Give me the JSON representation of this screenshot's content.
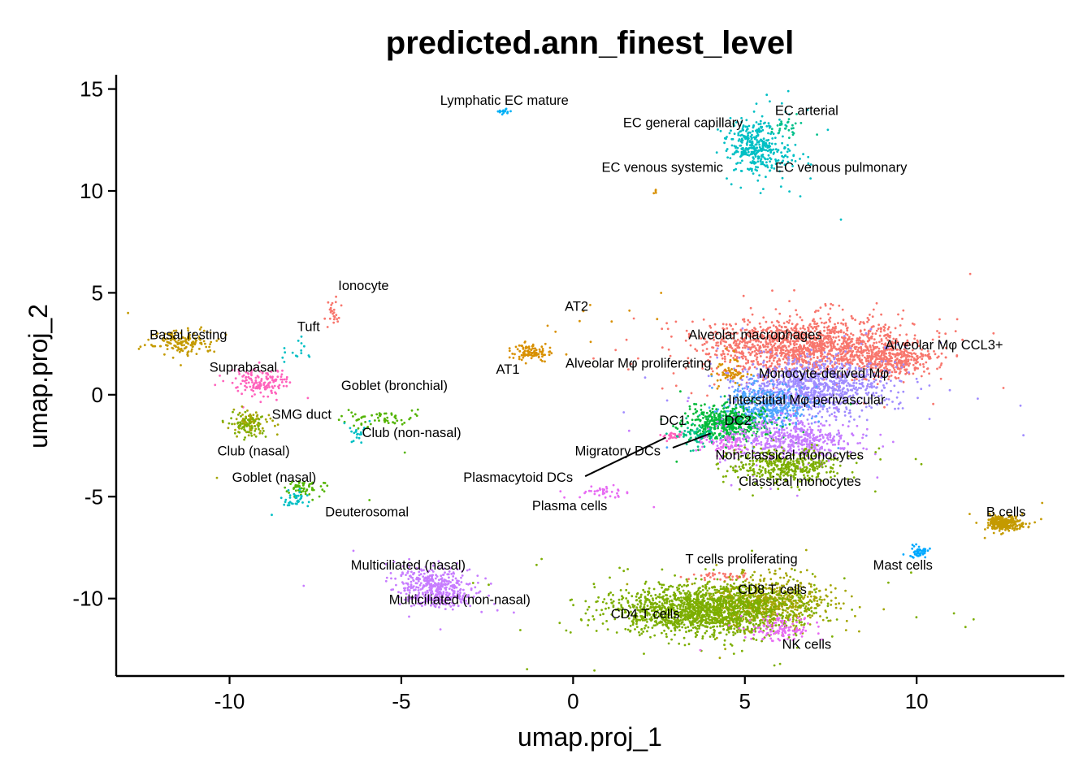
{
  "chart_data": {
    "type": "scatter",
    "title": "predicted.ann_finest_level",
    "xlabel": "umap.proj_1",
    "ylabel": "umap.proj_2",
    "xlim": [
      -13.3,
      14.3
    ],
    "ylim": [
      -13.8,
      15.7
    ],
    "xticks": [
      -10,
      -5,
      0,
      5,
      10
    ],
    "yticks": [
      15,
      10,
      5,
      0,
      -5,
      -10
    ],
    "xtick_labels": [
      "-10",
      "-5",
      "0",
      "5",
      "10"
    ],
    "ytick_labels": [
      "15",
      "10",
      "5",
      "0",
      "-5",
      "-10"
    ],
    "grid": false,
    "legend": "none",
    "clusters": [
      {
        "name": "Alveolar macrophages",
        "color": "#F8766D",
        "cx": 6.8,
        "cy": 2.4,
        "sx": 1.5,
        "sy": 0.7,
        "n": 1400,
        "label_x": 5.3,
        "label_y": 2.9
      },
      {
        "name": "Alveolar Mφ CCL3+",
        "color": "#F8766D",
        "cx": 9.3,
        "cy": 1.7,
        "sx": 0.6,
        "sy": 0.4,
        "n": 350,
        "label_x": 10.8,
        "label_y": 2.4
      },
      {
        "name": "Monocyte-derived Mφ",
        "color": "#A08CFF",
        "cx": 7.0,
        "cy": 0.4,
        "sx": 1.1,
        "sy": 0.7,
        "n": 1000,
        "label_x": 7.3,
        "label_y": 1.0
      },
      {
        "name": "Interstitial Mφ perivascular",
        "color": "#4DA5FF",
        "cx": 5.6,
        "cy": -0.6,
        "sx": 0.6,
        "sy": 0.5,
        "n": 400,
        "label_x": 6.8,
        "label_y": -0.3
      },
      {
        "name": "DC2",
        "color": "#00BA38",
        "cx": 4.5,
        "cy": -1.4,
        "sx": 0.6,
        "sy": 0.4,
        "n": 500,
        "label_x": 4.8,
        "label_y": -1.3
      },
      {
        "name": "DC1",
        "color": "#FF62BC",
        "cx": 2.9,
        "cy": -2.0,
        "sx": 0.15,
        "sy": 0.1,
        "n": 25,
        "label_x": 2.9,
        "label_y": -1.3
      },
      {
        "name": "Migratory DCs",
        "color": "#00C08B",
        "cx": 3.6,
        "cy": -2.0,
        "sx": 0.3,
        "sy": 0.3,
        "n": 60,
        "label_x": 1.3,
        "label_y": -2.8
      },
      {
        "name": "Plasmacytoid DCs",
        "color": "#E76BF3",
        "cx": 4.5,
        "cy": -2.4,
        "sx": 0.4,
        "sy": 0.3,
        "n": 80,
        "label_x": -1.6,
        "label_y": -4.1
      },
      {
        "name": "Non-classical monocytes",
        "color": "#C77CFF",
        "cx": 6.5,
        "cy": -2.2,
        "sx": 0.9,
        "sy": 0.5,
        "n": 500,
        "label_x": 6.3,
        "label_y": -3.0
      },
      {
        "name": "Classical monocytes",
        "color": "#7CAE00",
        "cx": 6.2,
        "cy": -3.5,
        "sx": 0.8,
        "sy": 0.4,
        "n": 400,
        "label_x": 6.6,
        "label_y": -4.3
      },
      {
        "name": "Plasma cells",
        "color": "#E76BF3",
        "cx": 0.8,
        "cy": -4.8,
        "sx": 0.4,
        "sy": 0.2,
        "n": 40,
        "label_x": -0.1,
        "label_y": -5.5
      },
      {
        "name": "T cells proliferating",
        "color": "#F8766D",
        "cx": 4.4,
        "cy": -8.9,
        "sx": 0.5,
        "sy": 0.1,
        "n": 40,
        "label_x": 4.9,
        "label_y": -8.1
      },
      {
        "name": "CD8 T cells",
        "color": "#A3A500",
        "cx": 5.6,
        "cy": -10.2,
        "sx": 0.9,
        "sy": 0.6,
        "n": 700,
        "label_x": 5.8,
        "label_y": -9.6
      },
      {
        "name": "CD4 T cells",
        "color": "#7CAE00",
        "cx": 3.8,
        "cy": -10.6,
        "sx": 1.3,
        "sy": 0.6,
        "n": 1600,
        "label_x": 2.1,
        "label_y": -10.8
      },
      {
        "name": "NK cells",
        "color": "#E76BF3",
        "cx": 6.1,
        "cy": -11.5,
        "sx": 0.5,
        "sy": 0.3,
        "n": 120,
        "label_x": 6.8,
        "label_y": -12.3
      },
      {
        "name": "B cells",
        "color": "#C49A00",
        "cx": 12.5,
        "cy": -6.3,
        "sx": 0.25,
        "sy": 0.18,
        "n": 300,
        "label_x": 12.6,
        "label_y": -5.8
      },
      {
        "name": "Mast cells",
        "color": "#00A9FF",
        "cx": 10.1,
        "cy": -7.7,
        "sx": 0.12,
        "sy": 0.15,
        "n": 50,
        "label_x": 9.6,
        "label_y": -8.4
      },
      {
        "name": "Multiciliated (nasal)",
        "color": "#C77CFF",
        "cx": -4.2,
        "cy": -9.2,
        "sx": 0.5,
        "sy": 0.4,
        "n": 250,
        "label_x": -4.8,
        "label_y": -8.4
      },
      {
        "name": "Multiciliated (non-nasal)",
        "color": "#C77CFF",
        "cx": -3.8,
        "cy": -9.9,
        "sx": 0.5,
        "sy": 0.3,
        "n": 200,
        "label_x": -3.3,
        "label_y": -10.1
      },
      {
        "name": "Basal resting",
        "color": "#C49A00",
        "cx": -11.4,
        "cy": 2.6,
        "sx": 0.5,
        "sy": 0.3,
        "n": 150,
        "label_x": -11.2,
        "label_y": 2.9
      },
      {
        "name": "Suprabasal",
        "color": "#FF62BC",
        "cx": -9.1,
        "cy": 0.6,
        "sx": 0.4,
        "sy": 0.3,
        "n": 150,
        "label_x": -9.6,
        "label_y": 1.3
      },
      {
        "name": "Tuft",
        "color": "#00BFC4",
        "cx": -7.8,
        "cy": 2.0,
        "sx": 0.3,
        "sy": 0.3,
        "n": 15,
        "label_x": -7.7,
        "label_y": 3.3
      },
      {
        "name": "Ionocyte",
        "color": "#F8766D",
        "cx": -7.0,
        "cy": 4.0,
        "sx": 0.15,
        "sy": 0.3,
        "n": 25,
        "label_x": -6.1,
        "label_y": 5.3
      },
      {
        "name": "SMG duct",
        "color": "#A3A500",
        "cx": -9.4,
        "cy": -1.3,
        "sx": 0.3,
        "sy": 0.3,
        "n": 80,
        "label_x": -7.9,
        "label_y": -1.0
      },
      {
        "name": "Club (nasal)",
        "color": "#7CAE00",
        "cx": -9.5,
        "cy": -1.5,
        "sx": 0.25,
        "sy": 0.3,
        "n": 60,
        "label_x": -9.3,
        "label_y": -2.8
      },
      {
        "name": "Goblet (bronchial)",
        "color": "#53B400",
        "cx": -5.7,
        "cy": -1.2,
        "sx": 0.5,
        "sy": 0.2,
        "n": 60,
        "label_x": -5.2,
        "label_y": 0.4
      },
      {
        "name": "Club (non-nasal)",
        "color": "#00BFC4",
        "cx": -6.2,
        "cy": -1.9,
        "sx": 0.2,
        "sy": 0.3,
        "n": 20,
        "label_x": -4.7,
        "label_y": -1.9
      },
      {
        "name": "Goblet (nasal)",
        "color": "#53B400",
        "cx": -7.8,
        "cy": -4.6,
        "sx": 0.3,
        "sy": 0.2,
        "n": 60,
        "label_x": -8.7,
        "label_y": -4.1
      },
      {
        "name": "Deuterosomal",
        "color": "#00BFC4",
        "cx": -8.1,
        "cy": -5.2,
        "sx": 0.2,
        "sy": 0.2,
        "n": 40,
        "label_x": -6.0,
        "label_y": -5.8
      },
      {
        "name": "AT1",
        "color": "#D89000",
        "cx": -1.2,
        "cy": 2.1,
        "sx": 0.3,
        "sy": 0.2,
        "n": 100,
        "label_x": -1.9,
        "label_y": 1.2
      },
      {
        "name": "Alveolar Mφ proliferating",
        "color": "#D89000",
        "cx": 4.6,
        "cy": 1.1,
        "sx": 0.2,
        "sy": 0.3,
        "n": 60,
        "label_x": 1.9,
        "label_y": 1.5
      },
      {
        "name": "AT2",
        "color": "#D89000",
        "cx": 1.2,
        "cy": 4.0,
        "sx": 0.8,
        "sy": 0.8,
        "n": 10,
        "label_x": 0.1,
        "label_y": 4.3
      },
      {
        "name": "Lymphatic EC mature",
        "color": "#00B0F6",
        "cx": -2.0,
        "cy": 13.9,
        "sx": 0.1,
        "sy": 0.05,
        "n": 15,
        "label_x": -2.0,
        "label_y": 14.4
      },
      {
        "name": "EC general capillary",
        "color": "#00BFC4",
        "cx": 5.3,
        "cy": 12.2,
        "sx": 0.4,
        "sy": 0.7,
        "n": 350,
        "label_x": 3.2,
        "label_y": 13.3
      },
      {
        "name": "EC arterial",
        "color": "#00C08B",
        "cx": 6.2,
        "cy": 13.2,
        "sx": 0.3,
        "sy": 0.3,
        "n": 30,
        "label_x": 6.8,
        "label_y": 13.9
      },
      {
        "name": "EC venous systemic",
        "color": "#D89000",
        "cx": 2.4,
        "cy": 10.0,
        "sx": 0.05,
        "sy": 0.1,
        "n": 4,
        "label_x": 2.6,
        "label_y": 11.1
      },
      {
        "name": "EC venous pulmonary",
        "color": "#00BFC4",
        "cx": 6.2,
        "cy": 11.6,
        "sx": 0.3,
        "sy": 0.3,
        "n": 30,
        "label_x": 7.8,
        "label_y": 11.1
      }
    ],
    "connectors": [
      {
        "from_x": 0.35,
        "from_y": -4.0,
        "to_x": 2.7,
        "to_y": -2.1
      },
      {
        "from_x": 2.9,
        "from_y": -2.6,
        "to_x": 4.0,
        "to_y": -1.9
      }
    ]
  }
}
